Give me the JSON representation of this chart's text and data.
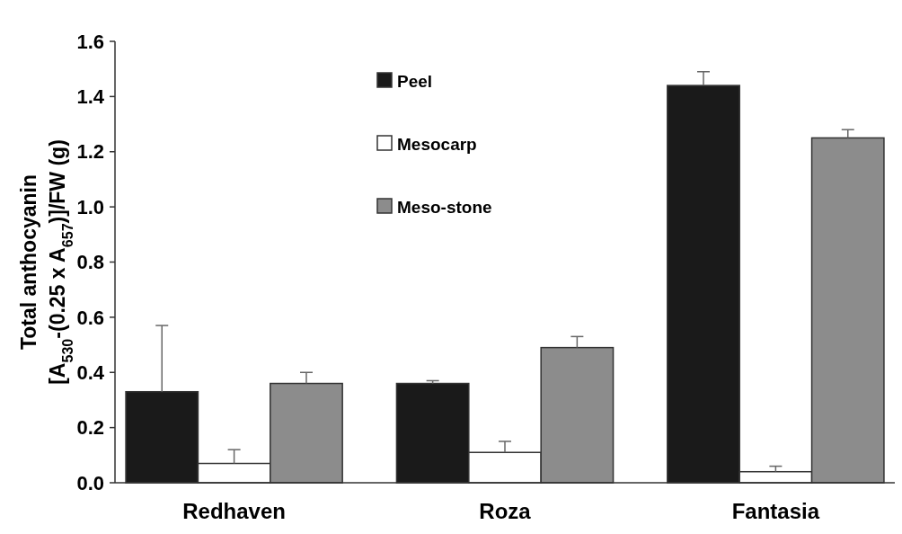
{
  "chart_data": {
    "type": "bar",
    "ylabel": "Total anthocyanin\n[A$_{530}$-(0.25 x A$_{657}$)]/FW (g)",
    "categories": [
      "Redhaven",
      "Roza",
      "Fantasia"
    ],
    "series": [
      {
        "name": "Peel",
        "color": "#1a1a1a",
        "values": [
          0.33,
          0.36,
          1.44
        ],
        "errors": [
          [
            0.33,
            0.57
          ],
          [
            0.36,
            0.37
          ],
          [
            1.44,
            1.49
          ]
        ]
      },
      {
        "name": "Mesocarp",
        "color": "#ffffff",
        "values": [
          0.07,
          0.11,
          0.04
        ],
        "errors": [
          [
            0.07,
            0.12
          ],
          [
            0.11,
            0.15
          ],
          [
            0.04,
            0.06
          ]
        ]
      },
      {
        "name": "Meso-stone",
        "color": "#8c8c8c",
        "values": [
          0.36,
          0.49,
          1.25
        ],
        "errors": [
          [
            0.36,
            0.4
          ],
          [
            0.49,
            0.53
          ],
          [
            1.25,
            1.28
          ]
        ]
      }
    ],
    "ylim": [
      0,
      1.6
    ],
    "yticks": [
      {
        "value": 0,
        "label": "0.0"
      },
      {
        "value": 0.2,
        "label": "0.2"
      },
      {
        "value": 0.4,
        "label": "0.4"
      },
      {
        "value": 0.6,
        "label": "0.6"
      },
      {
        "value": 0.8,
        "label": "0.8"
      },
      {
        "value": 1,
        "label": "1.0"
      },
      {
        "value": 1.2,
        "label": "1.2"
      },
      {
        "value": 1.4,
        "label": "1.4"
      },
      {
        "value": 1.6,
        "label": "1.6"
      }
    ],
    "legend": "top",
    "grid": false
  }
}
